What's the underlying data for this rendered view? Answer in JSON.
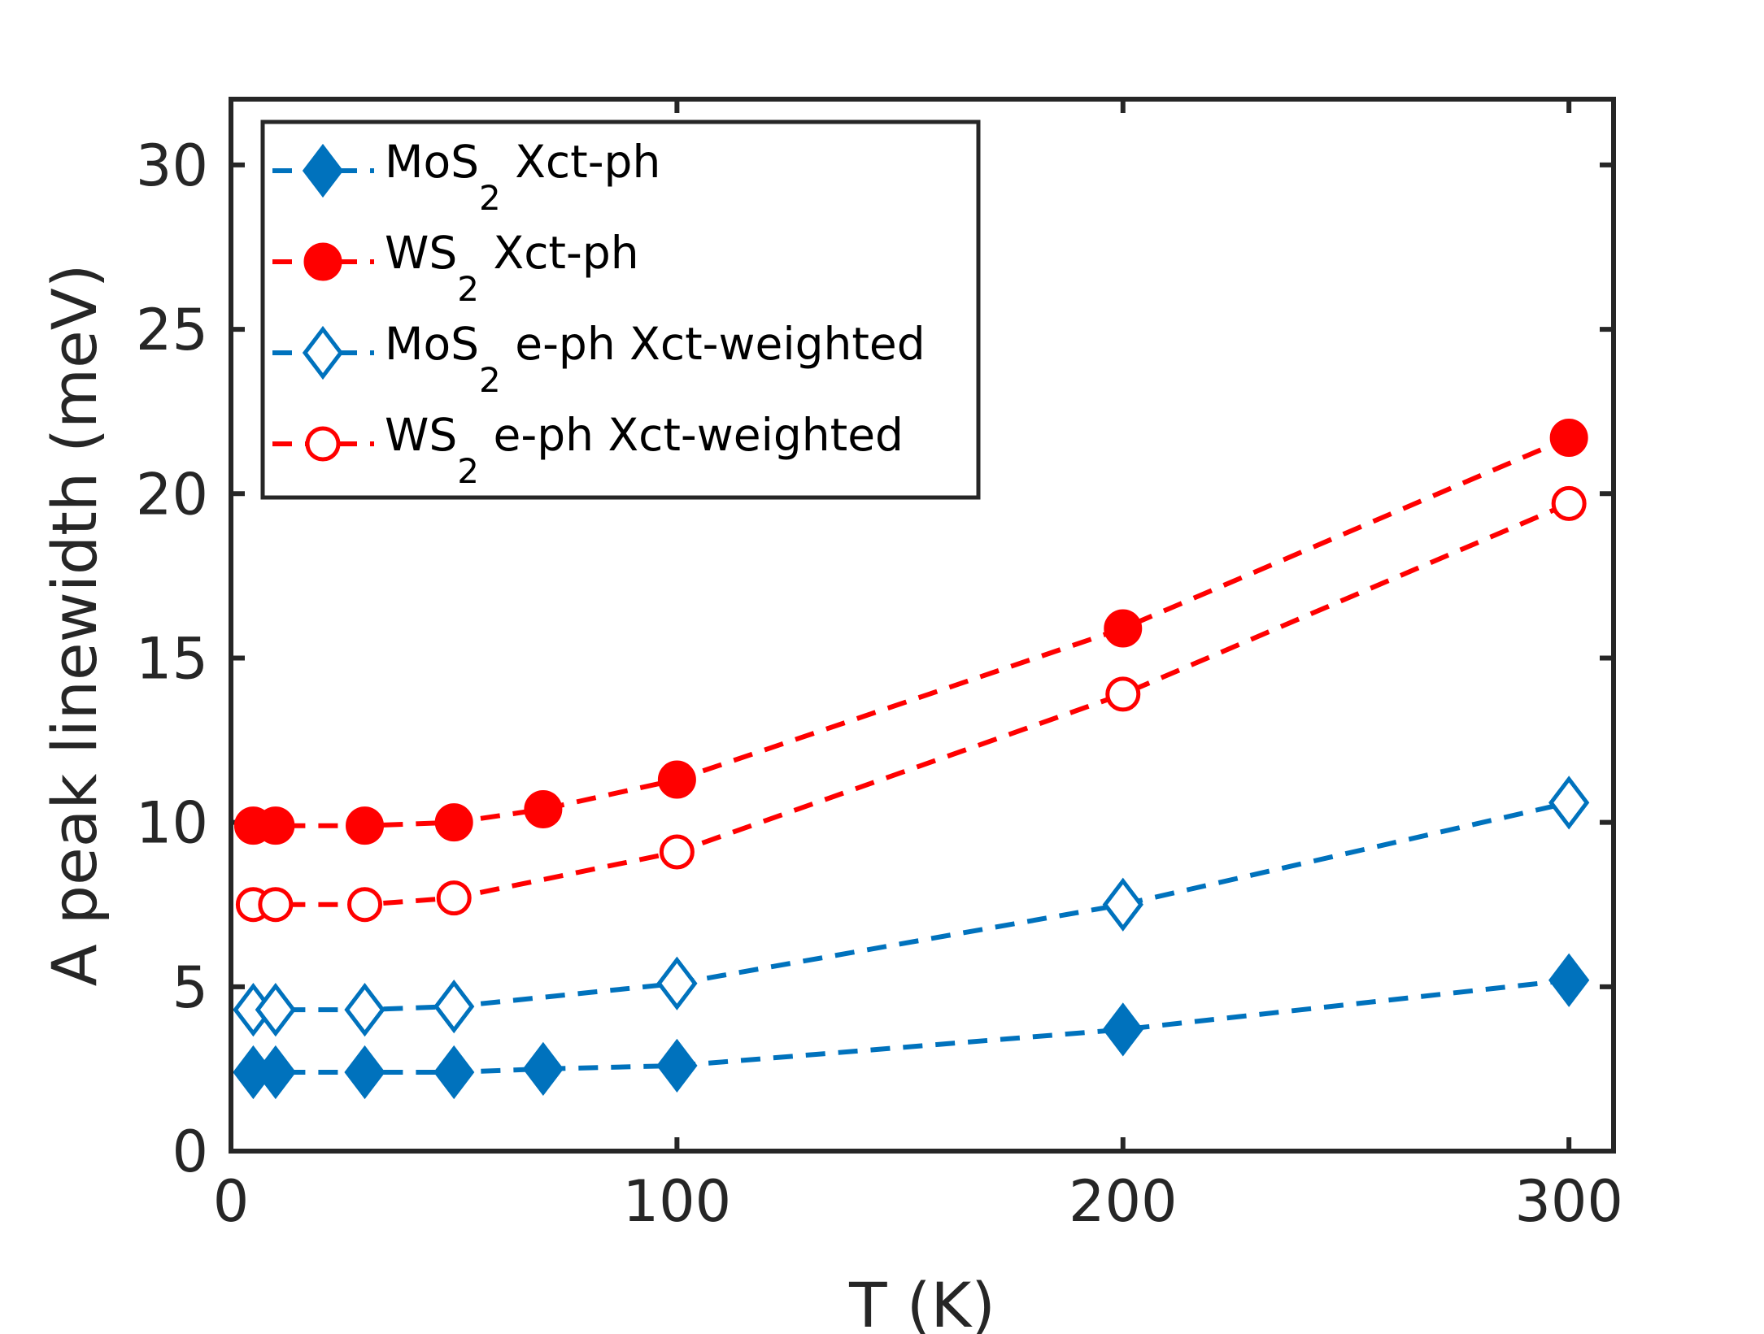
{
  "chart_data": {
    "type": "line",
    "xlabel": "T (K)",
    "ylabel": "A peak linewidth (meV)",
    "xlim": [
      0,
      310
    ],
    "ylim": [
      0,
      32
    ],
    "xticks": [
      0,
      100,
      200,
      300
    ],
    "xtick_labels": [
      "0",
      "100",
      "200",
      "300"
    ],
    "yticks": [
      0,
      5,
      10,
      15,
      20,
      25,
      30
    ],
    "ytick_labels": [
      "0",
      "5",
      "10",
      "15",
      "20",
      "25",
      "30"
    ],
    "grid": false,
    "legend_position": "top-left",
    "series": [
      {
        "name": "MoS2 Xct-ph",
        "legend": {
          "pre": "MoS",
          "sub": "2",
          "post": " Xct-ph"
        },
        "color": "#0072BD",
        "marker": "diamond",
        "filled": true,
        "x": [
          5,
          10,
          30,
          50,
          70,
          100,
          200,
          300
        ],
        "y": [
          2.4,
          2.4,
          2.4,
          2.4,
          2.5,
          2.6,
          3.7,
          5.2
        ]
      },
      {
        "name": "WS2 Xct-ph",
        "legend": {
          "pre": "WS",
          "sub": "2",
          "post": " Xct-ph"
        },
        "color": "#FF0000",
        "marker": "circle",
        "filled": true,
        "x": [
          5,
          10,
          30,
          50,
          70,
          100,
          200,
          300
        ],
        "y": [
          9.9,
          9.9,
          9.9,
          10.0,
          10.4,
          11.3,
          15.9,
          21.7
        ]
      },
      {
        "name": "MoS2 e-ph Xct-weighted",
        "legend": {
          "pre": "MoS",
          "sub": "2",
          "post": " e-ph Xct-weighted"
        },
        "color": "#0072BD",
        "marker": "diamond",
        "filled": false,
        "x": [
          5,
          10,
          30,
          50,
          100,
          200,
          300
        ],
        "y": [
          4.3,
          4.3,
          4.3,
          4.4,
          5.1,
          7.5,
          10.6
        ]
      },
      {
        "name": "WS2 e-ph Xct-weighted",
        "legend": {
          "pre": "WS",
          "sub": "2",
          "post": " e-ph Xct-weighted"
        },
        "color": "#FF0000",
        "marker": "circle",
        "filled": false,
        "x": [
          5,
          10,
          30,
          50,
          100,
          200,
          300
        ],
        "y": [
          7.5,
          7.5,
          7.5,
          7.7,
          9.1,
          13.9,
          19.7
        ]
      }
    ]
  }
}
